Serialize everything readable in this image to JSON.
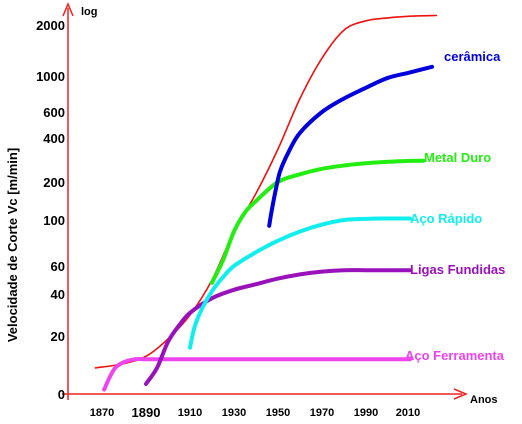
{
  "chart_data": {
    "type": "line",
    "ylabel": "Velocidade de Corte   Vc [m/min]",
    "yscale_label": "log",
    "xlabel": "Anos",
    "x_ticks": [
      "1870",
      "1890",
      "1910",
      "1930",
      "1950",
      "1970",
      "1990",
      "2010"
    ],
    "y_ticks": [
      "2000",
      "1000",
      "600",
      "400",
      "200",
      "100",
      "60",
      "40",
      "20",
      "0"
    ],
    "series": [
      {
        "name": "",
        "color": "#ee1111",
        "x": [
          1867,
          1880,
          1890,
          1900,
          1910,
          1920,
          1930,
          1940,
          1950,
          1960,
          1970,
          1980,
          1990,
          2000,
          2010,
          2022
        ],
        "y": [
          9,
          10.5,
          13,
          19,
          30,
          50,
          90,
          170,
          350,
          750,
          1350,
          1900,
          2250,
          2420,
          2520,
          2560
        ]
      },
      {
        "name": "cerâmica",
        "color": "#0000dd",
        "x": [
          1946,
          1947,
          1949,
          1951,
          1955,
          1960,
          1970,
          1980,
          1990,
          2000,
          2010,
          2020
        ],
        "y": [
          95,
          120,
          180,
          250,
          340,
          440,
          600,
          750,
          870,
          980,
          1070,
          1180
        ]
      },
      {
        "name": "Metal Duro",
        "color": "#22ee11",
        "x": [
          1920,
          1925,
          1930,
          1935,
          1940,
          1950,
          1960,
          1970,
          1980,
          1990,
          2000,
          2010,
          2016
        ],
        "y": [
          48,
          65,
          90,
          120,
          150,
          200,
          235,
          260,
          275,
          285,
          292,
          296,
          297
        ]
      },
      {
        "name": "Aço Rápido",
        "color": "#11eeee",
        "x": [
          1910,
          1912,
          1915,
          1920,
          1925,
          1930,
          1940,
          1950,
          1960,
          1970,
          1980,
          1990,
          2000,
          2010
        ],
        "y": [
          16,
          24,
          32,
          42,
          52,
          60,
          72,
          82,
          90,
          96,
          100,
          103,
          104,
          104
        ]
      },
      {
        "name": "Ligas Fundidas",
        "color": "#9911bb",
        "x": [
          1890,
          1895,
          1900,
          1905,
          1910,
          1920,
          1930,
          1940,
          1950,
          1960,
          1970,
          1980,
          1990,
          2000,
          2010
        ],
        "y": [
          3.5,
          9,
          18,
          25,
          31,
          38,
          43,
          47,
          51,
          54,
          56,
          57,
          57,
          57,
          57
        ]
      },
      {
        "name": "Aço Ferramenta",
        "color": "#ee44ee",
        "x": [
          1871,
          1873,
          1876,
          1880,
          1885,
          1890,
          1900,
          1920,
          1950,
          1980,
          2010
        ],
        "y": [
          1.5,
          5,
          9,
          11,
          12,
          12,
          12,
          12,
          12,
          12,
          12
        ]
      }
    ]
  }
}
